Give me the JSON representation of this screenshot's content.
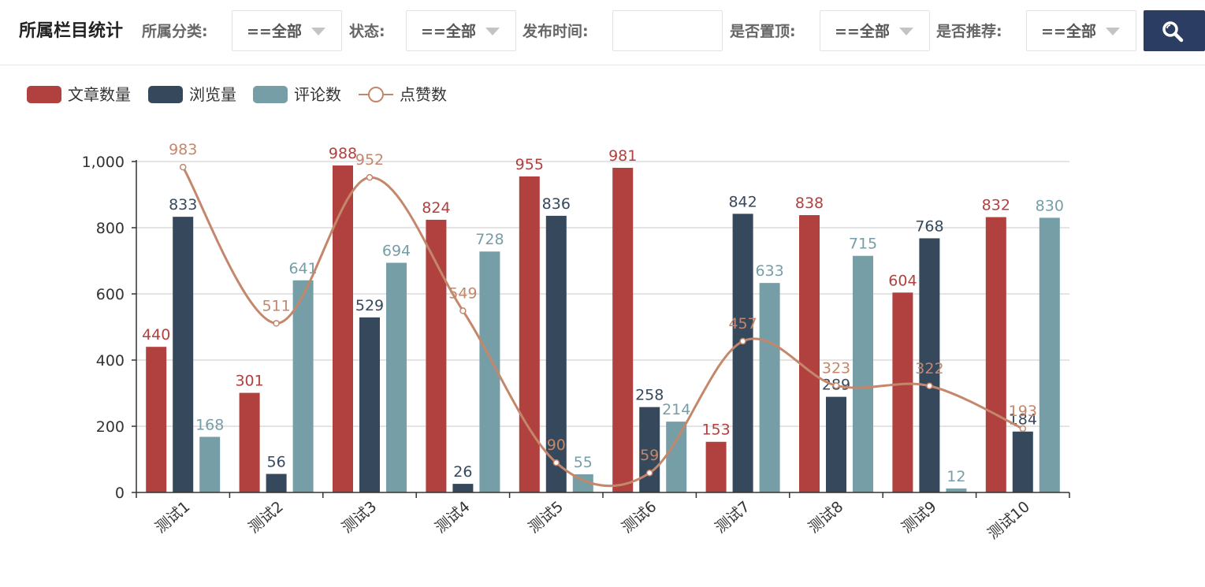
{
  "header": {
    "title": "所属栏目统计",
    "filters": [
      {
        "label": "所属分类:",
        "value": "==全部"
      },
      {
        "label": "状态:",
        "value": "==全部"
      },
      {
        "label": "发布时间:",
        "value": ""
      },
      {
        "label": "是否置顶:",
        "value": "==全部"
      },
      {
        "label": "是否推荐:",
        "value": "==全部"
      }
    ],
    "search_icon": "search-icon"
  },
  "colors": {
    "articles": "#b0413e",
    "views": "#36495c",
    "comments": "#769ea7",
    "likes": "#c4876b",
    "search_button": "#2b3d63"
  },
  "chart_data": {
    "type": "bar",
    "categories": [
      "测试1",
      "测试2",
      "测试3",
      "测试4",
      "测试5",
      "测试6",
      "测试7",
      "测试8",
      "测试9",
      "测试10"
    ],
    "series": [
      {
        "name": "文章数量",
        "type": "bar",
        "values": [
          440,
          301,
          988,
          824,
          955,
          981,
          153,
          838,
          604,
          832
        ]
      },
      {
        "name": "浏览量",
        "type": "bar",
        "values": [
          833,
          56,
          529,
          26,
          836,
          258,
          842,
          289,
          768,
          184
        ]
      },
      {
        "name": "评论数",
        "type": "bar",
        "values": [
          168,
          641,
          694,
          728,
          55,
          214,
          633,
          715,
          12,
          830
        ]
      },
      {
        "name": "点赞数",
        "type": "line",
        "smooth": true,
        "values": [
          983,
          511,
          952,
          549,
          90,
          59,
          457,
          323,
          322,
          193
        ]
      }
    ],
    "yticks": [
      "0",
      "200",
      "400",
      "600",
      "800",
      "1,000"
    ],
    "ylim": [
      0,
      1000
    ],
    "grid": true,
    "legend": "top-left"
  }
}
